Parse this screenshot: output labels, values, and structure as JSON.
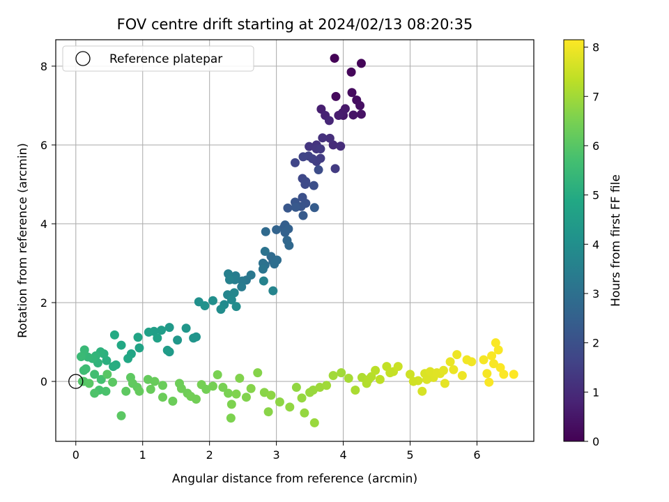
{
  "chart_data": {
    "type": "scatter",
    "title": "FOV centre drift starting at 2024/02/13 08:20:35",
    "xlabel": "Angular distance from reference (arcmin)",
    "ylabel": "Rotation from reference (arcmin)",
    "xlim": [
      -0.3,
      6.85
    ],
    "ylim": [
      -1.52,
      8.67
    ],
    "xticks": [
      0,
      1,
      2,
      3,
      4,
      5,
      6
    ],
    "yticks": [
      0,
      2,
      4,
      6,
      8
    ],
    "grid": true,
    "legend": {
      "position": "top-left",
      "entries": [
        "Reference platepar"
      ]
    },
    "reference_point": {
      "x": 0,
      "y": 0
    },
    "colorbar": {
      "label": "Hours from first FF file",
      "colormap": "viridis",
      "range": [
        0,
        8.15
      ],
      "ticks": [
        0,
        1,
        2,
        3,
        4,
        5,
        6,
        7,
        8
      ]
    },
    "points": [
      [
        3.87,
        8.2,
        0.05
      ],
      [
        4.27,
        8.07,
        0.1
      ],
      [
        4.12,
        7.85,
        0.15
      ],
      [
        3.89,
        7.23,
        0.2
      ],
      [
        4.13,
        7.33,
        0.25
      ],
      [
        4.2,
        7.14,
        0.3
      ],
      [
        4.25,
        7.0,
        0.35
      ],
      [
        4.27,
        6.78,
        0.4
      ],
      [
        4.15,
        6.76,
        0.45
      ],
      [
        4.0,
        6.75,
        0.5
      ],
      [
        4.03,
        6.92,
        0.55
      ],
      [
        3.99,
        6.82,
        0.6
      ],
      [
        3.93,
        6.75,
        0.65
      ],
      [
        3.67,
        6.91,
        0.7
      ],
      [
        3.73,
        6.75,
        0.8
      ],
      [
        3.79,
        6.62,
        0.9
      ],
      [
        3.85,
        6.0,
        1.0
      ],
      [
        3.96,
        5.97,
        1.05
      ],
      [
        3.8,
        6.17,
        1.1
      ],
      [
        3.69,
        6.18,
        1.15
      ],
      [
        3.6,
        6.0,
        1.2
      ],
      [
        3.49,
        5.96,
        1.25
      ],
      [
        3.6,
        5.9,
        1.3
      ],
      [
        3.66,
        5.9,
        1.35
      ],
      [
        3.88,
        5.4,
        1.4
      ],
      [
        3.66,
        5.66,
        1.45
      ],
      [
        3.6,
        5.58,
        1.5
      ],
      [
        3.54,
        5.65,
        1.55
      ],
      [
        3.48,
        5.72,
        1.6
      ],
      [
        3.4,
        5.7,
        1.65
      ],
      [
        3.28,
        5.55,
        1.7
      ],
      [
        3.39,
        5.15,
        1.75
      ],
      [
        3.44,
        5.07,
        1.8
      ],
      [
        3.43,
        5.0,
        1.85
      ],
      [
        3.63,
        5.37,
        1.9
      ],
      [
        3.56,
        4.97,
        1.95
      ],
      [
        3.39,
        4.67,
        2.0
      ],
      [
        3.44,
        4.52,
        2.05
      ],
      [
        3.37,
        4.44,
        2.1
      ],
      [
        3.28,
        4.55,
        2.15
      ],
      [
        3.17,
        4.4,
        2.2
      ],
      [
        3.29,
        4.42,
        2.25
      ],
      [
        3.4,
        4.21,
        2.3
      ],
      [
        3.57,
        4.41,
        2.35
      ],
      [
        3.11,
        3.9,
        2.4
      ],
      [
        3.13,
        3.97,
        2.45
      ],
      [
        3.18,
        3.87,
        2.5
      ],
      [
        3.13,
        3.78,
        2.55
      ],
      [
        3.0,
        3.85,
        2.6
      ],
      [
        2.95,
        3.05,
        2.65
      ],
      [
        3.16,
        3.58,
        2.7
      ],
      [
        3.19,
        3.45,
        2.75
      ],
      [
        2.84,
        3.8,
        2.8
      ],
      [
        2.92,
        3.17,
        2.85
      ],
      [
        3.01,
        3.08,
        2.9
      ],
      [
        2.97,
        2.98,
        2.95
      ],
      [
        2.83,
        2.95,
        3.0
      ],
      [
        2.8,
        3.0,
        3.05
      ],
      [
        2.83,
        3.3,
        3.1
      ],
      [
        2.8,
        2.85,
        3.15
      ],
      [
        2.55,
        2.57,
        3.2
      ],
      [
        2.62,
        2.7,
        3.25
      ],
      [
        2.49,
        2.55,
        3.3
      ],
      [
        2.48,
        2.4,
        3.35
      ],
      [
        2.39,
        2.68,
        3.4
      ],
      [
        2.38,
        2.58,
        3.45
      ],
      [
        2.28,
        2.73,
        3.5
      ],
      [
        2.3,
        2.58,
        3.55
      ],
      [
        2.81,
        2.55,
        3.6
      ],
      [
        2.95,
        2.3,
        3.65
      ],
      [
        2.27,
        2.2,
        3.7
      ],
      [
        2.37,
        2.25,
        3.75
      ],
      [
        2.33,
        2.07,
        3.8
      ],
      [
        2.22,
        1.95,
        3.85
      ],
      [
        2.4,
        1.9,
        3.9
      ],
      [
        2.17,
        1.83,
        3.95
      ],
      [
        2.05,
        2.05,
        4.0
      ],
      [
        1.84,
        2.02,
        4.05
      ],
      [
        1.93,
        1.92,
        4.1
      ],
      [
        1.8,
        1.13,
        4.15
      ],
      [
        1.76,
        1.1,
        4.2
      ],
      [
        1.65,
        1.35,
        4.25
      ],
      [
        1.52,
        1.05,
        4.3
      ],
      [
        1.4,
        1.37,
        4.35
      ],
      [
        1.4,
        0.75,
        4.4
      ],
      [
        1.37,
        0.79,
        4.45
      ],
      [
        1.28,
        1.3,
        4.5
      ],
      [
        1.17,
        1.27,
        4.55
      ],
      [
        1.09,
        1.25,
        4.6
      ],
      [
        1.22,
        1.1,
        4.65
      ],
      [
        0.95,
        0.85,
        4.7
      ],
      [
        0.93,
        1.12,
        4.75
      ],
      [
        0.83,
        0.7,
        4.8
      ],
      [
        0.78,
        0.58,
        4.85
      ],
      [
        0.68,
        0.92,
        4.9
      ],
      [
        0.58,
        1.18,
        4.95
      ],
      [
        0.6,
        0.42,
        5.0
      ],
      [
        0.56,
        0.38,
        5.05
      ],
      [
        0.46,
        0.53,
        5.1
      ],
      [
        0.42,
        0.7,
        5.15
      ],
      [
        0.37,
        0.75,
        5.2
      ],
      [
        0.33,
        0.47,
        5.25
      ],
      [
        0.3,
        0.65,
        5.3
      ],
      [
        0.25,
        0.58,
        5.35
      ],
      [
        0.18,
        0.62,
        5.4
      ],
      [
        0.13,
        0.8,
        5.45
      ],
      [
        0.08,
        0.63,
        5.5
      ],
      [
        0.15,
        0.32,
        5.55
      ],
      [
        0.12,
        0.28,
        5.6
      ],
      [
        0.28,
        0.18,
        5.65
      ],
      [
        0.38,
        0.05,
        5.7
      ],
      [
        0.35,
        -0.22,
        5.75
      ],
      [
        0.45,
        -0.25,
        5.8
      ],
      [
        0.28,
        -0.3,
        5.85
      ],
      [
        0.12,
        0.0,
        5.9
      ],
      [
        0.1,
        0.0,
        5.95
      ],
      [
        0.2,
        -0.05,
        6.0
      ],
      [
        0.47,
        0.18,
        6.0
      ],
      [
        0.55,
        -0.02,
        6.05
      ],
      [
        0.68,
        -0.87,
        6.05
      ],
      [
        0.75,
        -0.25,
        6.1
      ],
      [
        0.82,
        0.1,
        6.1
      ],
      [
        0.85,
        -0.05,
        6.15
      ],
      [
        0.92,
        -0.15,
        6.15
      ],
      [
        0.95,
        -0.25,
        6.2
      ],
      [
        1.08,
        0.05,
        6.2
      ],
      [
        1.12,
        -0.2,
        6.25
      ],
      [
        1.18,
        0.0,
        6.25
      ],
      [
        1.3,
        -0.4,
        6.3
      ],
      [
        1.45,
        -0.5,
        6.3
      ],
      [
        1.58,
        -0.18,
        6.35
      ],
      [
        1.67,
        -0.3,
        6.35
      ],
      [
        1.72,
        -0.38,
        6.4
      ],
      [
        1.8,
        -0.45,
        6.4
      ],
      [
        1.88,
        -0.08,
        6.45
      ],
      [
        2.05,
        -0.12,
        6.45
      ],
      [
        2.12,
        0.17,
        6.5
      ],
      [
        2.28,
        -0.3,
        6.5
      ],
      [
        2.33,
        -0.58,
        6.55
      ],
      [
        2.32,
        -0.93,
        6.55
      ],
      [
        2.45,
        0.08,
        6.6
      ],
      [
        2.55,
        -0.4,
        6.6
      ],
      [
        2.62,
        -0.18,
        6.65
      ],
      [
        2.72,
        0.22,
        6.65
      ],
      [
        2.82,
        -0.28,
        6.7
      ],
      [
        2.88,
        -0.77,
        6.7
      ],
      [
        2.92,
        -0.35,
        6.75
      ],
      [
        3.05,
        -0.52,
        6.75
      ],
      [
        3.2,
        -0.65,
        6.8
      ],
      [
        3.3,
        -0.15,
        6.8
      ],
      [
        3.38,
        -0.42,
        6.85
      ],
      [
        3.42,
        -0.8,
        6.85
      ],
      [
        3.55,
        -0.22,
        6.9
      ],
      [
        3.57,
        -1.05,
        6.9
      ],
      [
        3.65,
        -0.15,
        6.95
      ],
      [
        3.85,
        0.15,
        7.0
      ],
      [
        3.97,
        0.22,
        7.0
      ],
      [
        4.08,
        0.08,
        7.05
      ],
      [
        4.18,
        -0.22,
        7.1
      ],
      [
        4.28,
        0.1,
        7.15
      ],
      [
        4.35,
        -0.05,
        7.2
      ],
      [
        4.42,
        0.12,
        7.25
      ],
      [
        4.48,
        0.28,
        7.3
      ],
      [
        4.55,
        0.05,
        7.35
      ],
      [
        4.65,
        0.38,
        7.4
      ],
      [
        4.75,
        0.25,
        7.45
      ],
      [
        4.82,
        0.38,
        7.5
      ],
      [
        5.0,
        0.18,
        7.55
      ],
      [
        5.12,
        0.02,
        7.6
      ],
      [
        5.18,
        -0.25,
        7.65
      ],
      [
        5.22,
        0.2,
        7.7
      ],
      [
        5.3,
        0.25,
        7.75
      ],
      [
        5.35,
        0.1,
        7.75
      ],
      [
        5.45,
        0.2,
        7.8
      ],
      [
        5.52,
        -0.05,
        7.85
      ],
      [
        5.6,
        0.5,
        7.9
      ],
      [
        5.7,
        0.68,
        7.95
      ],
      [
        5.78,
        0.15,
        7.95
      ],
      [
        5.85,
        0.55,
        8.0
      ],
      [
        5.92,
        0.5,
        8.0
      ],
      [
        6.1,
        0.55,
        8.05
      ],
      [
        6.15,
        0.2,
        8.05
      ],
      [
        6.18,
        -0.02,
        8.1
      ],
      [
        6.22,
        0.65,
        8.1
      ],
      [
        6.28,
        0.98,
        8.1
      ],
      [
        6.35,
        0.35,
        8.12
      ],
      [
        6.4,
        0.18,
        8.12
      ],
      [
        6.55,
        0.18,
        8.15
      ],
      [
        5.4,
        0.22,
        7.78
      ],
      [
        5.25,
        0.05,
        7.72
      ],
      [
        5.05,
        0.0,
        7.58
      ],
      [
        6.25,
        0.45,
        8.08
      ],
      [
        6.32,
        0.8,
        8.1
      ],
      [
        2.2,
        -0.15,
        6.48
      ],
      [
        2.4,
        -0.32,
        6.58
      ],
      [
        1.95,
        -0.2,
        6.42
      ],
      [
        1.55,
        -0.05,
        6.33
      ],
      [
        1.3,
        -0.1,
        6.28
      ],
      [
        3.5,
        -0.28,
        6.88
      ],
      [
        3.75,
        -0.1,
        6.98
      ],
      [
        4.38,
        0.05,
        7.22
      ],
      [
        4.7,
        0.22,
        7.42
      ],
      [
        5.5,
        0.28,
        7.82
      ],
      [
        5.65,
        0.3,
        7.92
      ]
    ]
  }
}
